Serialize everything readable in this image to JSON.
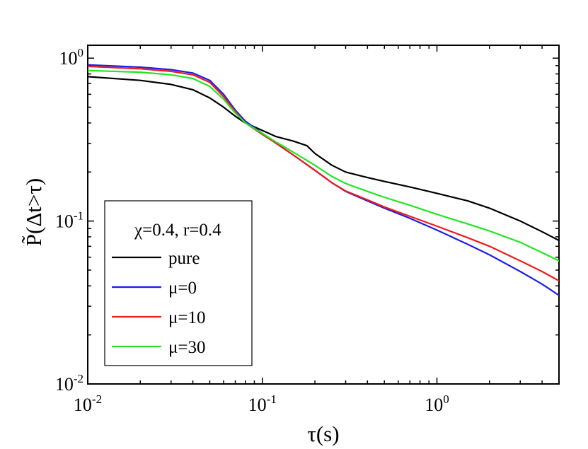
{
  "chart_data": {
    "type": "line",
    "x_scale": "log",
    "y_scale": "log",
    "xlim": [
      0.01,
      5.0
    ],
    "ylim": [
      0.01,
      1.2
    ],
    "xlabel": "τ(s)",
    "ylabel": "P̃(Δt>τ)",
    "x_ticks": [
      {
        "value": 0.01,
        "base": "10",
        "exp": "-2"
      },
      {
        "value": 0.1,
        "base": "10",
        "exp": "-1"
      },
      {
        "value": 1.0,
        "base": "10",
        "exp": "0"
      }
    ],
    "y_ticks": [
      {
        "value": 0.01,
        "base": "10",
        "exp": "-2"
      },
      {
        "value": 0.1,
        "base": "10",
        "exp": "-1"
      },
      {
        "value": 1.0,
        "base": "10",
        "exp": "0"
      }
    ],
    "legend": {
      "title": "χ=0.4, r=0.4",
      "position": "bottom-left"
    },
    "series": [
      {
        "name": "pure",
        "color": "#000000",
        "x": [
          0.01,
          0.02,
          0.03,
          0.04,
          0.05,
          0.06,
          0.07,
          0.08,
          0.1,
          0.12,
          0.15,
          0.18,
          0.2,
          0.25,
          0.3,
          0.4,
          0.5,
          0.7,
          1.0,
          1.5,
          2.0,
          3.0,
          4.0,
          5.0
        ],
        "y": [
          0.77,
          0.73,
          0.69,
          0.64,
          0.57,
          0.5,
          0.44,
          0.4,
          0.36,
          0.33,
          0.31,
          0.29,
          0.26,
          0.22,
          0.2,
          0.185,
          0.175,
          0.162,
          0.148,
          0.133,
          0.12,
          0.1,
          0.086,
          0.076
        ]
      },
      {
        "name": "μ=0",
        "color": "#1e1ee6",
        "x": [
          0.01,
          0.02,
          0.03,
          0.04,
          0.05,
          0.06,
          0.07,
          0.08,
          0.1,
          0.12,
          0.15,
          0.2,
          0.25,
          0.3,
          0.4,
          0.5,
          0.7,
          1.0,
          1.5,
          2.0,
          3.0,
          4.0,
          5.0
        ],
        "y": [
          0.91,
          0.88,
          0.85,
          0.81,
          0.73,
          0.6,
          0.48,
          0.41,
          0.345,
          0.3,
          0.255,
          0.205,
          0.172,
          0.152,
          0.133,
          0.12,
          0.104,
          0.088,
          0.072,
          0.062,
          0.049,
          0.041,
          0.035
        ]
      },
      {
        "name": "μ=10",
        "color": "#ee1c1c",
        "x": [
          0.01,
          0.02,
          0.03,
          0.04,
          0.05,
          0.06,
          0.07,
          0.08,
          0.1,
          0.12,
          0.15,
          0.2,
          0.25,
          0.3,
          0.4,
          0.5,
          0.7,
          1.0,
          1.5,
          2.0,
          3.0,
          4.0,
          5.0
        ],
        "y": [
          0.89,
          0.86,
          0.83,
          0.79,
          0.71,
          0.58,
          0.47,
          0.4,
          0.34,
          0.3,
          0.255,
          0.205,
          0.172,
          0.153,
          0.135,
          0.122,
          0.107,
          0.093,
          0.079,
          0.07,
          0.057,
          0.049,
          0.043
        ]
      },
      {
        "name": "μ=30",
        "color": "#22e622",
        "x": [
          0.01,
          0.02,
          0.03,
          0.04,
          0.05,
          0.06,
          0.07,
          0.08,
          0.1,
          0.12,
          0.15,
          0.2,
          0.25,
          0.3,
          0.4,
          0.5,
          0.7,
          1.0,
          1.5,
          2.0,
          3.0,
          4.0,
          5.0
        ],
        "y": [
          0.84,
          0.82,
          0.79,
          0.75,
          0.67,
          0.56,
          0.46,
          0.4,
          0.345,
          0.305,
          0.265,
          0.22,
          0.188,
          0.17,
          0.152,
          0.14,
          0.125,
          0.11,
          0.096,
          0.087,
          0.074,
          0.064,
          0.057
        ]
      }
    ]
  }
}
